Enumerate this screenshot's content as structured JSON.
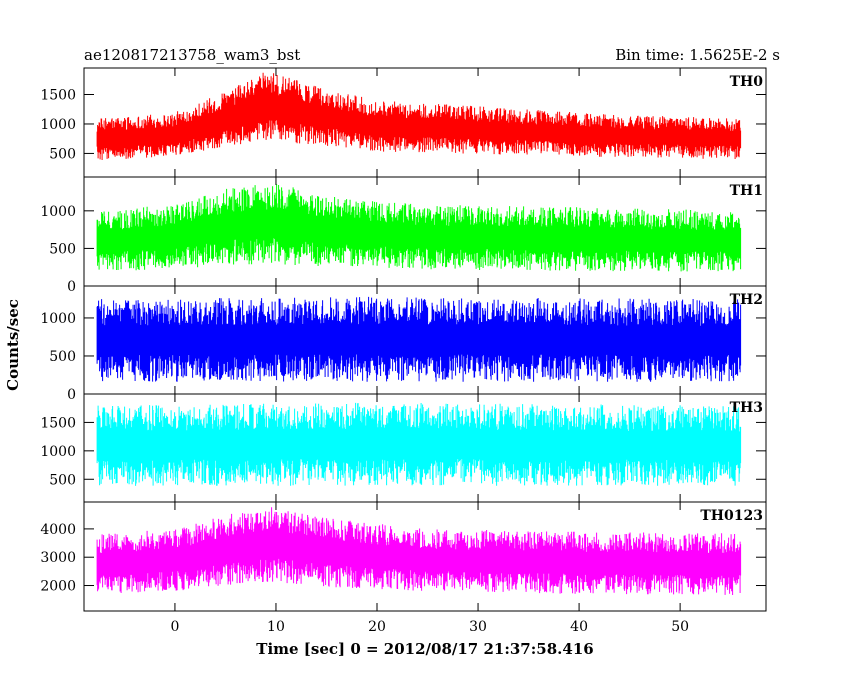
{
  "header": {
    "title": "ae120817213758_wam3_bst",
    "bin_time": "Bin time: 1.5625E-2 s"
  },
  "chart_data": {
    "type": "line",
    "x_range": [
      -9.0,
      58.5
    ],
    "data_x_range": [
      -7.7,
      56.0
    ],
    "x_ticks": [
      0,
      10,
      20,
      30,
      40,
      50
    ],
    "xlabel": "Time [sec] 0 = 2012/08/17 21:37:58.416",
    "ylabel": "Counts/sec",
    "panels": [
      {
        "name": "TH0",
        "color": "#ff0000",
        "ylim": [
          100,
          1950
        ],
        "y_ticks": [
          500,
          1000,
          1500
        ],
        "profile": [
          [
            -8,
            380,
            1100
          ],
          [
            0,
            450,
            1200
          ],
          [
            5,
            620,
            1550
          ],
          [
            9,
            700,
            1900
          ],
          [
            14,
            640,
            1650
          ],
          [
            20,
            530,
            1400
          ],
          [
            35,
            470,
            1250
          ],
          [
            45,
            430,
            1150
          ],
          [
            56,
            400,
            1100
          ]
        ]
      },
      {
        "name": "TH1",
        "color": "#00ff00",
        "ylim": [
          0,
          1450
        ],
        "y_ticks": [
          0,
          500,
          1000
        ],
        "profile": [
          [
            -8,
            180,
            980
          ],
          [
            0,
            220,
            1100
          ],
          [
            5,
            280,
            1300
          ],
          [
            10,
            290,
            1380
          ],
          [
            15,
            260,
            1200
          ],
          [
            25,
            220,
            1080
          ],
          [
            40,
            200,
            1050
          ],
          [
            56,
            190,
            1000
          ]
        ]
      },
      {
        "name": "TH2",
        "color": "#0000ff",
        "ylim": [
          0,
          1420
        ],
        "y_ticks": [
          0,
          500,
          1000
        ],
        "profile": [
          [
            -8,
            160,
            1250
          ],
          [
            20,
            160,
            1280
          ],
          [
            40,
            160,
            1260
          ],
          [
            56,
            160,
            1250
          ]
        ]
      },
      {
        "name": "TH3",
        "color": "#00ffff",
        "ylim": [
          100,
          2000
        ],
        "y_ticks": [
          500,
          1000,
          1500
        ],
        "profile": [
          [
            -8,
            380,
            1800
          ],
          [
            20,
            390,
            1850
          ],
          [
            40,
            380,
            1820
          ],
          [
            56,
            380,
            1800
          ]
        ]
      },
      {
        "name": "TH0123",
        "color": "#ff00ff",
        "ylim": [
          1100,
          4950
        ],
        "y_ticks": [
          2000,
          3000,
          4000
        ],
        "profile": [
          [
            -8,
            1700,
            3800
          ],
          [
            0,
            1800,
            4000
          ],
          [
            5,
            2000,
            4500
          ],
          [
            10,
            2100,
            4800
          ],
          [
            15,
            1950,
            4400
          ],
          [
            25,
            1800,
            4000
          ],
          [
            40,
            1700,
            3900
          ],
          [
            56,
            1650,
            3850
          ]
        ]
      }
    ]
  }
}
